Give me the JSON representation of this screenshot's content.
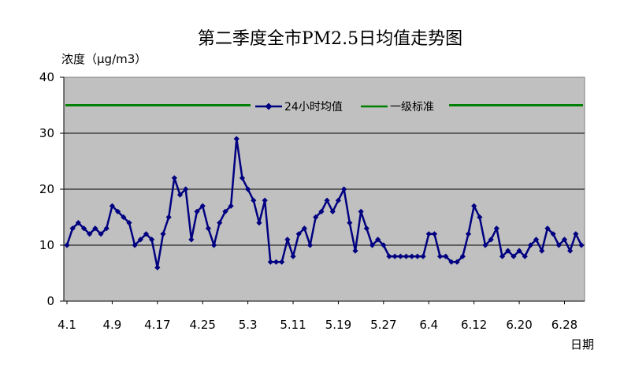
{
  "chart_data": {
    "type": "line",
    "title": "第二季度全市PM2.5日均值走势图",
    "ylabel": "浓度（μg/m3）",
    "xlabel": "日期",
    "ylim": [
      0,
      40
    ],
    "yticks": [
      "0",
      "10",
      "20",
      "30",
      "40"
    ],
    "xticks": [
      {
        "index": 0,
        "label": "4.1"
      },
      {
        "index": 8,
        "label": "4.9"
      },
      {
        "index": 16,
        "label": "4.17"
      },
      {
        "index": 24,
        "label": "4.25"
      },
      {
        "index": 32,
        "label": "5.3"
      },
      {
        "index": 40,
        "label": "5.11"
      },
      {
        "index": 48,
        "label": "5.19"
      },
      {
        "index": 56,
        "label": "5.27"
      },
      {
        "index": 64,
        "label": "6.4"
      },
      {
        "index": 72,
        "label": "6.12"
      },
      {
        "index": 80,
        "label": "6.20"
      },
      {
        "index": 88,
        "label": "6.28"
      }
    ],
    "grid": true,
    "legend_position": "top",
    "plot_background": "#c0c0c0",
    "series": [
      {
        "name": "24小时均值",
        "color": "#000080",
        "marker": "diamond",
        "values": [
          10,
          13,
          14,
          13,
          12,
          13,
          12,
          13,
          17,
          16,
          15,
          14,
          10,
          11,
          12,
          11,
          6,
          12,
          15,
          22,
          19,
          20,
          11,
          16,
          17,
          13,
          10,
          14,
          16,
          17,
          29,
          22,
          20,
          18,
          14,
          18,
          7,
          7,
          7,
          11,
          8,
          12,
          13,
          10,
          15,
          16,
          18,
          16,
          18,
          20,
          14,
          9,
          16,
          13,
          10,
          11,
          10,
          8,
          8,
          8,
          8,
          8,
          8,
          8,
          12,
          12,
          8,
          8,
          7,
          7,
          8,
          12,
          17,
          15,
          10,
          11,
          13,
          8,
          9,
          8,
          9,
          8,
          10,
          11,
          9,
          13,
          12,
          10,
          11,
          9,
          12,
          10
        ]
      },
      {
        "name": "一级标准",
        "color": "#008000",
        "value": 35
      }
    ]
  }
}
